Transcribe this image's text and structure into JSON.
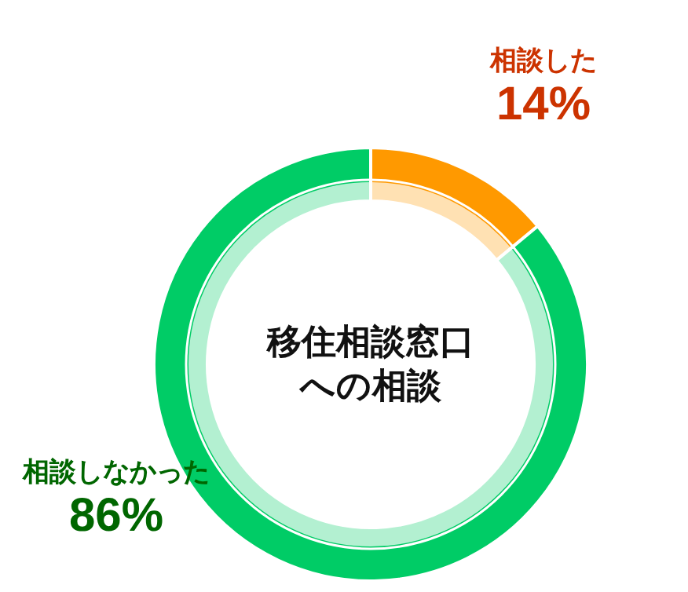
{
  "chart_data": {
    "type": "donut",
    "title": "移住相談窓口への相談",
    "categories": [
      "相談した",
      "相談しなかった"
    ],
    "values": [
      14,
      86
    ],
    "colors": [
      "#ff9900",
      "#00cc66"
    ],
    "value_labels": [
      "14%",
      "86%"
    ]
  }
}
